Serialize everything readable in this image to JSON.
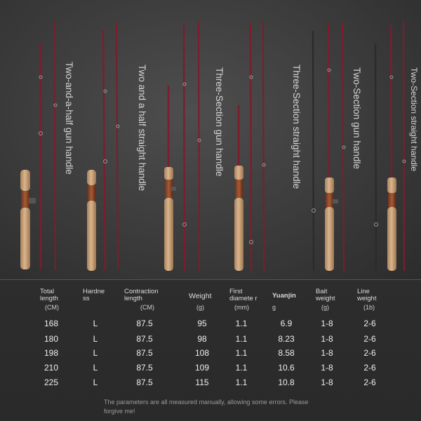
{
  "handles": [
    "Two-and-a-half gun handle",
    "Two and a half straight handle",
    "Three-Section gun handle",
    "Three-Section straight handle",
    "Two-Section gun handle",
    "Two-Section straight handle"
  ],
  "table": {
    "headers": [
      {
        "text": "Total length",
        "unit": "(CM)"
      },
      {
        "text": "Hardne ss",
        "unit": ""
      },
      {
        "text": "Contraction length",
        "unit": "(CM)"
      },
      {
        "text": "Weight",
        "unit": "(g)"
      },
      {
        "text": "First diamete r",
        "unit": "(mm)"
      },
      {
        "text": "Yuanjin",
        "unit": "g"
      },
      {
        "text": "Bait weight",
        "unit": "(g)"
      },
      {
        "text": "Line weight",
        "unit": "(1b)"
      }
    ],
    "rows": [
      [
        "168",
        "L",
        "87.5",
        "95",
        "1.1",
        "6.9",
        "1-8",
        "2-6"
      ],
      [
        "180",
        "L",
        "87.5",
        "98",
        "1.1",
        "8.23",
        "1-8",
        "2-6"
      ],
      [
        "198",
        "L",
        "87.5",
        "108",
        "1.1",
        "8.58",
        "1-8",
        "2-6"
      ],
      [
        "210",
        "L",
        "87.5",
        "109",
        "1.1",
        "10.6",
        "1-8",
        "2-6"
      ],
      [
        "225",
        "L",
        "87.5",
        "115",
        "1.1",
        "10.8",
        "1-8",
        "2-6"
      ]
    ]
  },
  "note": "The parameters are all measured manually, allowing some errors. Please forgive me!",
  "colors": {
    "rod_blank": "#7a1e2e",
    "cork": "#c9a27a",
    "reel_seat": "#8a4a2a",
    "background": "#3a3a3a"
  }
}
